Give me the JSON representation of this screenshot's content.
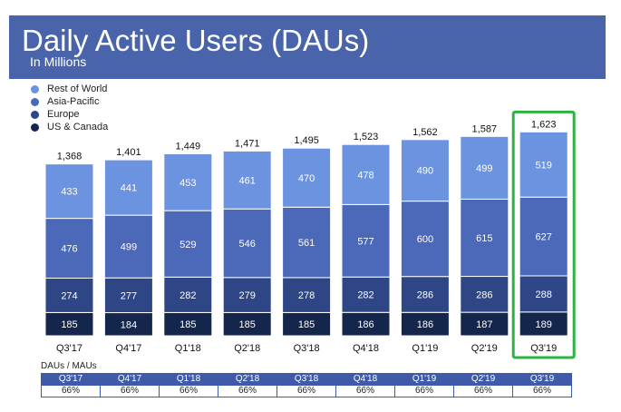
{
  "header": {
    "title": "Daily Active Users (DAUs)",
    "subtitle": "In Millions",
    "background": "#4964aa"
  },
  "legend": [
    {
      "label": "Rest of World",
      "color": "#6b93e0"
    },
    {
      "label": "Asia-Pacific",
      "color": "#4c68b8"
    },
    {
      "label": "Europe",
      "color": "#2e4686"
    },
    {
      "label": "US & Canada",
      "color": "#15264d"
    }
  ],
  "chart_data": {
    "type": "bar",
    "stacked": true,
    "title": "Daily Active Users (DAUs)",
    "subtitle": "In Millions",
    "categories": [
      "Q3'17",
      "Q4'17",
      "Q1'18",
      "Q2'18",
      "Q3'18",
      "Q4'18",
      "Q1'19",
      "Q2'19",
      "Q3'19"
    ],
    "totals": [
      "1,368",
      "1,401",
      "1,449",
      "1,471",
      "1,495",
      "1,523",
      "1,562",
      "1,587",
      "1,623"
    ],
    "series": [
      {
        "name": "US & Canada",
        "color": "#15264d",
        "values": [
          185,
          184,
          185,
          185,
          185,
          186,
          186,
          187,
          189
        ]
      },
      {
        "name": "Europe",
        "color": "#2e4686",
        "values": [
          274,
          277,
          282,
          279,
          278,
          282,
          286,
          286,
          288
        ]
      },
      {
        "name": "Asia-Pacific",
        "color": "#4c68b8",
        "values": [
          476,
          499,
          529,
          546,
          561,
          577,
          600,
          615,
          627
        ]
      },
      {
        "name": "Rest of World",
        "color": "#6b93e0",
        "values": [
          433,
          441,
          453,
          461,
          470,
          478,
          490,
          499,
          519
        ]
      }
    ],
    "highlight_category": "Q3'19",
    "highlight_color": "#2eb342"
  },
  "ratio_table": {
    "label": "DAUs / MAUs",
    "quarters": [
      "Q3'17",
      "Q4'17",
      "Q1'18",
      "Q2'18",
      "Q3'18",
      "Q4'18",
      "Q1'19",
      "Q2'19",
      "Q3'19"
    ],
    "values": [
      "66%",
      "66%",
      "66%",
      "66%",
      "66%",
      "66%",
      "66%",
      "66%",
      "66%"
    ]
  }
}
